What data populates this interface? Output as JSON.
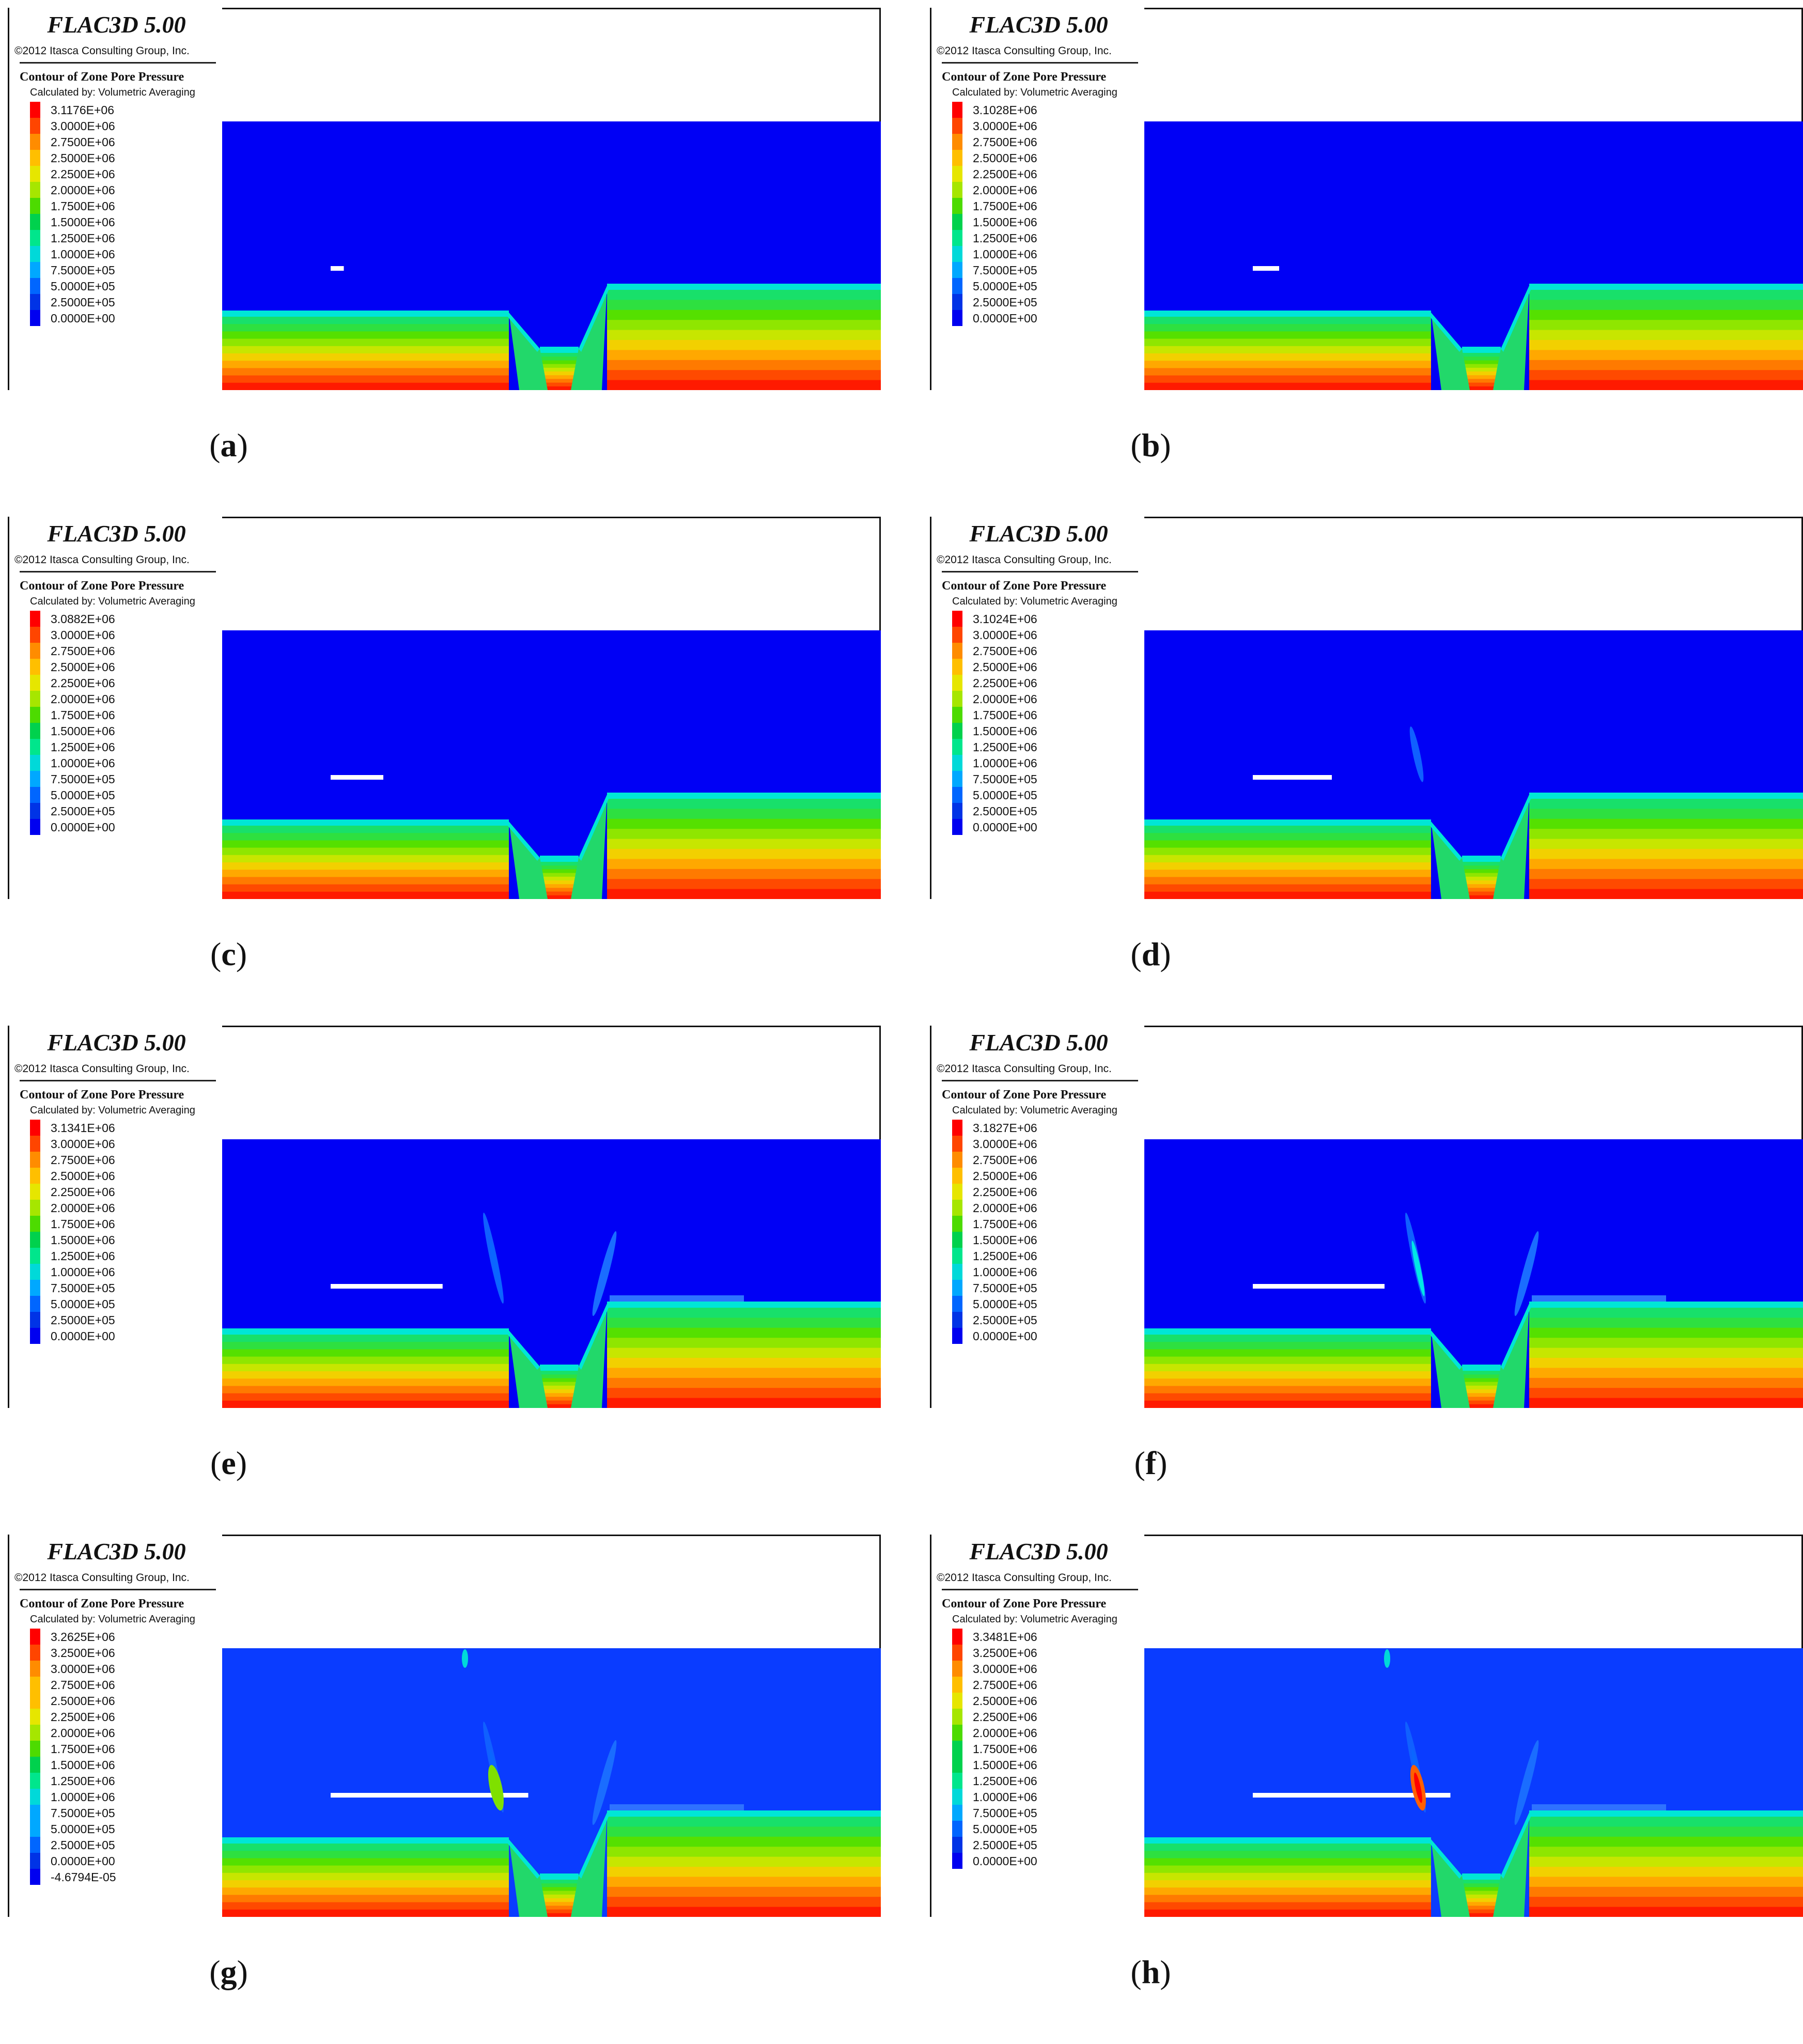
{
  "figure": {
    "app_title": "FLAC3D 5.00",
    "copyright": "©2012 Itasca Consulting Group, Inc.",
    "contour_title": "Contour of Zone Pore Pressure",
    "calc_method": "Calculated by: Volumetric Averaging"
  },
  "colors": {
    "scale_rgb": [
      "#ff0000",
      "#ff4500",
      "#ff8c00",
      "#ffbf00",
      "#e6e600",
      "#a6e600",
      "#4ddb00",
      "#00d14d",
      "#00e68c",
      "#00d9d9",
      "#00a8ff",
      "#0066ff",
      "#0033e6",
      "#0000f0"
    ],
    "water_blue": "#0000f5",
    "water_blue_light": "#0a3cff",
    "notch_lens": "#00e6e6"
  },
  "panels": [
    {
      "id": "a",
      "caption_letter": "a",
      "legend_values": [
        "3.1176E+06",
        "3.0000E+06",
        "2.7500E+06",
        "2.5000E+06",
        "2.2500E+06",
        "2.0000E+06",
        "1.7500E+06",
        "1.5000E+06",
        "1.2500E+06",
        "1.0000E+06",
        "7.5000E+05",
        "5.0000E+05",
        "2.5000E+05",
        "0.0000E+00"
      ],
      "excavation_length_fraction": 0.02,
      "fracture_zones": "none"
    },
    {
      "id": "b",
      "caption_letter": "b",
      "legend_values": [
        "3.1028E+06",
        "3.0000E+06",
        "2.7500E+06",
        "2.5000E+06",
        "2.2500E+06",
        "2.0000E+06",
        "1.7500E+06",
        "1.5000E+06",
        "1.2500E+06",
        "1.0000E+06",
        "7.5000E+05",
        "5.0000E+05",
        "2.5000E+05",
        "0.0000E+00"
      ],
      "excavation_length_fraction": 0.04,
      "fracture_zones": "none"
    },
    {
      "id": "c",
      "caption_letter": "c",
      "legend_values": [
        "3.0882E+06",
        "3.0000E+06",
        "2.7500E+06",
        "2.5000E+06",
        "2.2500E+06",
        "2.0000E+06",
        "1.7500E+06",
        "1.5000E+06",
        "1.2500E+06",
        "1.0000E+06",
        "7.5000E+05",
        "5.0000E+05",
        "2.5000E+05",
        "0.0000E+00"
      ],
      "excavation_length_fraction": 0.08,
      "fracture_zones": "none"
    },
    {
      "id": "d",
      "caption_letter": "d",
      "legend_values": [
        "3.1024E+06",
        "3.0000E+06",
        "2.7500E+06",
        "2.5000E+06",
        "2.2500E+06",
        "2.0000E+06",
        "1.7500E+06",
        "1.5000E+06",
        "1.2500E+06",
        "1.0000E+06",
        "7.5000E+05",
        "5.0000E+05",
        "2.5000E+05",
        "0.0000E+00"
      ],
      "excavation_length_fraction": 0.12,
      "fracture_zones": "small"
    },
    {
      "id": "e",
      "caption_letter": "e",
      "legend_values": [
        "3.1341E+06",
        "3.0000E+06",
        "2.7500E+06",
        "2.5000E+06",
        "2.2500E+06",
        "2.0000E+06",
        "1.7500E+06",
        "1.5000E+06",
        "1.2500E+06",
        "1.0000E+06",
        "7.5000E+05",
        "5.0000E+05",
        "2.5000E+05",
        "0.0000E+00"
      ],
      "excavation_length_fraction": 0.17,
      "fracture_zones": "medium"
    },
    {
      "id": "f",
      "caption_letter": "f",
      "legend_values": [
        "3.1827E+06",
        "3.0000E+06",
        "2.7500E+06",
        "2.5000E+06",
        "2.2500E+06",
        "2.0000E+06",
        "1.7500E+06",
        "1.5000E+06",
        "1.2500E+06",
        "1.0000E+06",
        "7.5000E+05",
        "5.0000E+05",
        "2.5000E+05",
        "0.0000E+00"
      ],
      "excavation_length_fraction": 0.2,
      "fracture_zones": "medium"
    },
    {
      "id": "g",
      "caption_letter": "g",
      "legend_values": [
        "3.2625E+06",
        "3.2500E+06",
        "3.0000E+06",
        "2.7500E+06",
        "2.5000E+06",
        "2.2500E+06",
        "2.0000E+06",
        "1.7500E+06",
        "1.5000E+06",
        "1.2500E+06",
        "1.0000E+06",
        "7.5000E+05",
        "5.0000E+05",
        "2.5000E+05",
        "0.0000E+00",
        "-4.6794E-05"
      ],
      "excavation_length_fraction": 0.3,
      "fracture_zones": "large"
    },
    {
      "id": "h",
      "caption_letter": "h",
      "legend_values": [
        "3.3481E+06",
        "3.2500E+06",
        "3.0000E+06",
        "2.7500E+06",
        "2.5000E+06",
        "2.2500E+06",
        "2.0000E+06",
        "1.7500E+06",
        "1.5000E+06",
        "1.2500E+06",
        "1.0000E+06",
        "7.5000E+05",
        "5.0000E+05",
        "2.5000E+05",
        "0.0000E+00"
      ],
      "excavation_length_fraction": 0.3,
      "fracture_zones": "large-hot"
    }
  ],
  "chart_data": {
    "type": "heatmap",
    "title": "Contour of Zone Pore Pressure",
    "subplots": [
      "a",
      "b",
      "c",
      "d",
      "e",
      "f",
      "g",
      "h"
    ],
    "max_pore_pressure": [
      3117600,
      3102800,
      3088200,
      3102400,
      3134100,
      3182700,
      3262500,
      3348100
    ],
    "min_pore_pressure": [
      0,
      0,
      0,
      0,
      0,
      0,
      -4.6794e-05,
      0
    ]
  }
}
